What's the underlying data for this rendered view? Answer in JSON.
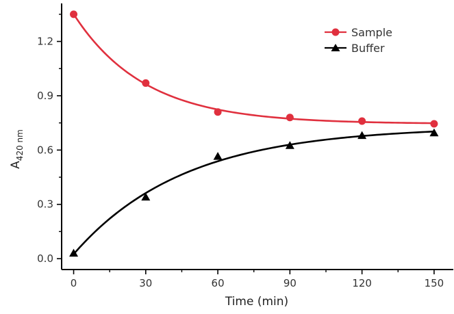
{
  "chart_data": {
    "type": "line",
    "xlabel": "Time (min)",
    "ylabel_main": "A",
    "ylabel_sub": "420 nm",
    "xlim": [
      -5,
      158
    ],
    "ylim": [
      -0.06,
      1.41
    ],
    "xticks": [
      0,
      30,
      60,
      90,
      120,
      150
    ],
    "xtick_labels": [
      "0",
      "30",
      "60",
      "90",
      "120",
      "150"
    ],
    "yticks": [
      0.0,
      0.3,
      0.6,
      0.9,
      1.2
    ],
    "ytick_labels": [
      "0.0",
      "0.3",
      "0.6",
      "0.9",
      "1.2"
    ],
    "grid": false,
    "legend_position": "top-right",
    "series": [
      {
        "name": "Sample",
        "marker": "circle",
        "color": "#e0303e",
        "x": [
          0,
          30,
          60,
          90,
          120,
          150
        ],
        "y": [
          1.35,
          0.97,
          0.81,
          0.78,
          0.76,
          0.745
        ]
      },
      {
        "name": "Buffer",
        "marker": "triangle",
        "color": "#000000",
        "x": [
          0,
          30,
          60,
          90,
          120,
          150
        ],
        "y": [
          0.03,
          0.34,
          0.565,
          0.625,
          0.68,
          0.695
        ]
      }
    ]
  }
}
